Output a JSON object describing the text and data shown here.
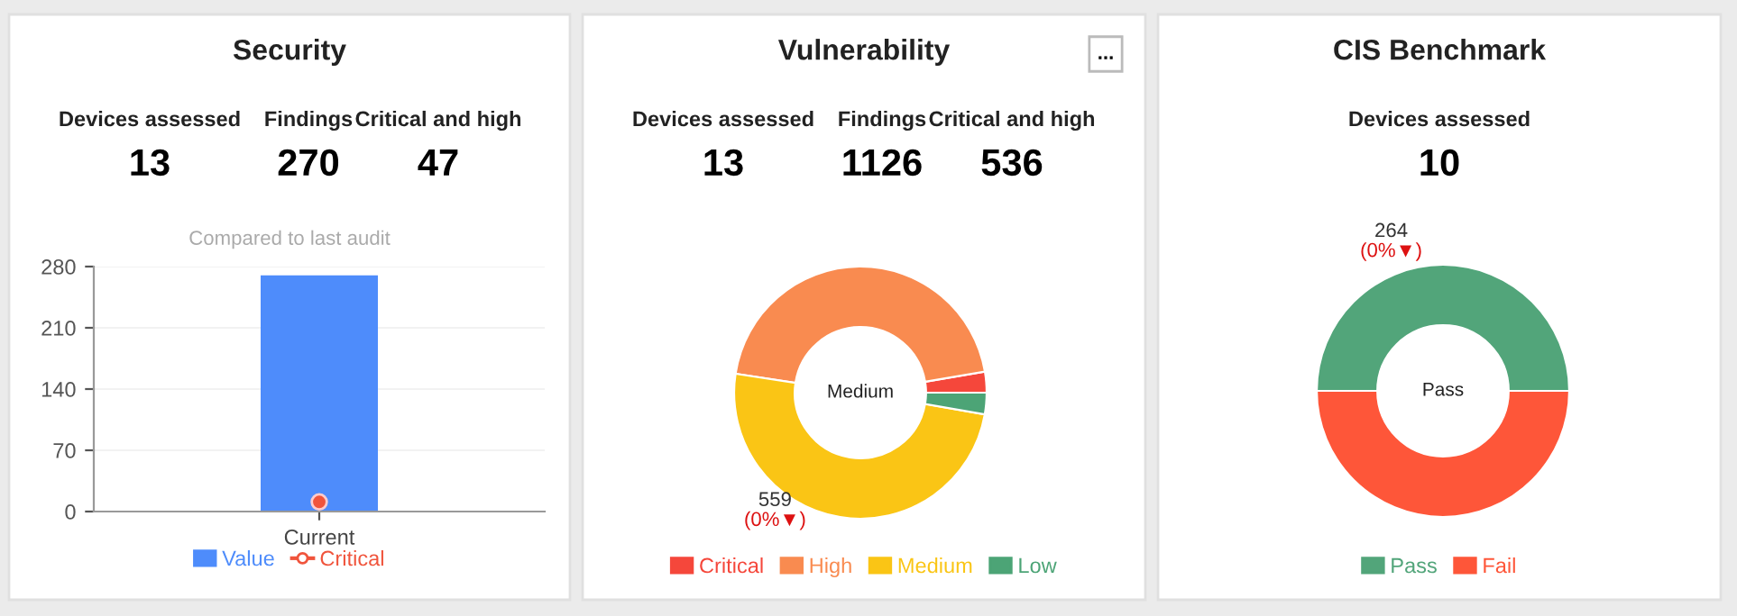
{
  "chart_data": [
    {
      "type": "bar",
      "title": "Security",
      "subtitle": "Compared to last audit",
      "categories": [
        "Current"
      ],
      "series": [
        {
          "name": "Value",
          "type": "bar",
          "color": "#4e8cfb",
          "values": [
            270
          ]
        },
        {
          "name": "Critical",
          "type": "line",
          "color": "#f0543c",
          "values": [
            11
          ]
        }
      ],
      "marker": "circle",
      "ylim": [
        0,
        280
      ],
      "yticks": [
        0,
        70,
        140,
        210,
        280
      ],
      "grid": "y",
      "legend": "bottom",
      "annotations": [
        "Devices assessed",
        "13",
        "Findings",
        "270",
        "Critical and high",
        "47"
      ]
    },
    {
      "type": "donut",
      "title": "Vulnerability",
      "categories": [
        "Critical",
        "High",
        "Medium",
        "Low"
      ],
      "values": [
        30,
        506,
        559,
        31
      ],
      "colors": [
        "#f5473b",
        "#f98b50",
        "#fac515",
        "#4ca476"
      ],
      "value_labels": [
        null,
        null,
        "559",
        null
      ],
      "legend": "bottom",
      "annotations": [
        "Devices assessed",
        "13",
        "Findings",
        "1126",
        "Critical and high",
        "536",
        "Medium",
        "(0%▼)",
        "..."
      ]
    },
    {
      "type": "donut",
      "title": "CIS Benchmark",
      "categories": [
        "Pass",
        "Fail"
      ],
      "values": [
        264,
        264
      ],
      "colors": [
        "#52a57a",
        "#fe5639"
      ],
      "value_labels": [
        "264",
        null
      ],
      "legend": "bottom",
      "annotations": [
        "Devices assessed",
        "10",
        "Pass",
        "(0%▼)"
      ]
    }
  ]
}
